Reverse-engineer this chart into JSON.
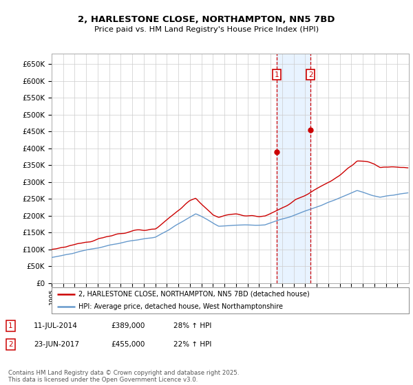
{
  "title": "2, HARLESTONE CLOSE, NORTHAMPTON, NN5 7BD",
  "subtitle": "Price paid vs. HM Land Registry's House Price Index (HPI)",
  "ytick_labels": [
    "£0",
    "£50K",
    "£100K",
    "£150K",
    "£200K",
    "£250K",
    "£300K",
    "£350K",
    "£400K",
    "£450K",
    "£500K",
    "£550K",
    "£600K",
    "£650K"
  ],
  "ytick_values": [
    0,
    50000,
    100000,
    150000,
    200000,
    250000,
    300000,
    350000,
    400000,
    450000,
    500000,
    550000,
    600000,
    650000
  ],
  "ylim": [
    0,
    680000
  ],
  "xlim_start": 1995.0,
  "xlim_end": 2025.99,
  "hpi_color": "#6699cc",
  "price_color": "#cc0000",
  "sale1_date": 2014.53,
  "sale1_price": 389000,
  "sale2_date": 2017.47,
  "sale2_price": 455000,
  "sale1_label": "1",
  "sale2_label": "2",
  "legend_line1": "2, HARLESTONE CLOSE, NORTHAMPTON, NN5 7BD (detached house)",
  "legend_line2": "HPI: Average price, detached house, West Northamptonshire",
  "table_row1": [
    "1",
    "11-JUL-2014",
    "£389,000",
    "28% ↑ HPI"
  ],
  "table_row2": [
    "2",
    "23-JUN-2017",
    "£455,000",
    "22% ↑ HPI"
  ],
  "footnote": "Contains HM Land Registry data © Crown copyright and database right 2025.\nThis data is licensed under the Open Government Licence v3.0.",
  "background_color": "#ffffff",
  "grid_color": "#cccccc",
  "shade_color": "#ddeeff",
  "hpi_seed": 10,
  "price_seed": 20
}
